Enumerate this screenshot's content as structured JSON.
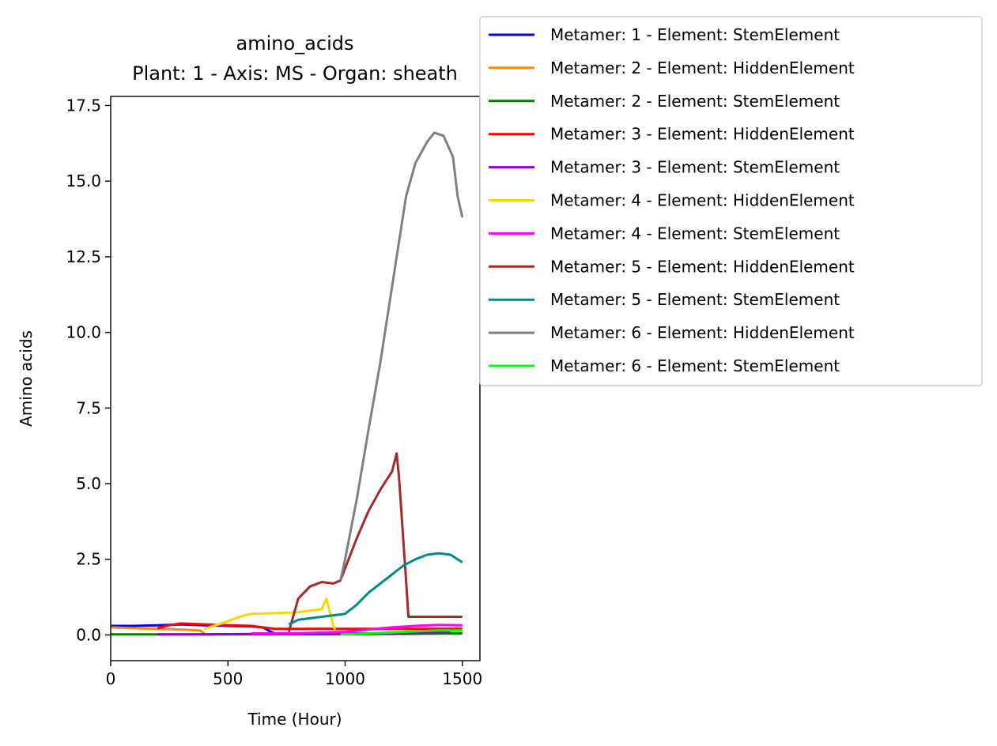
{
  "chart_data": {
    "type": "line",
    "title": "amino_acids",
    "subtitle": "Plant: 1 - Axis: MS - Organ: sheath",
    "xlabel": "Time (Hour)",
    "ylabel": "Amino acids",
    "xlim": [
      0,
      1575
    ],
    "ylim": [
      -0.85,
      17.8
    ],
    "xticks": [
      0,
      500,
      1000,
      1500
    ],
    "xtick_labels": [
      "0",
      "500",
      "1000",
      "1500"
    ],
    "yticks": [
      0,
      2.5,
      5,
      7.5,
      10,
      12.5,
      15,
      17.5
    ],
    "ytick_labels": [
      "0.0",
      "2.5",
      "5.0",
      "7.5",
      "10.0",
      "12.5",
      "15.0",
      "17.5"
    ],
    "grid": false,
    "legend_position": "outside-top-right",
    "series": [
      {
        "name": "Metamer: 1 - Element: StemElement",
        "color": "#0000ff",
        "x": [
          0,
          100,
          200,
          300,
          400,
          500,
          600,
          650,
          680,
          700
        ],
        "y": [
          0.3,
          0.3,
          0.32,
          0.35,
          0.32,
          0.3,
          0.28,
          0.25,
          0.12,
          0.05
        ]
      },
      {
        "name": "Metamer: 2 - Element: HiddenElement",
        "color": "#ff8c00",
        "x": [
          0,
          100,
          200,
          300,
          380,
          400
        ],
        "y": [
          0.25,
          0.22,
          0.2,
          0.18,
          0.15,
          0.05
        ]
      },
      {
        "name": "Metamer: 2 - Element: StemElement",
        "color": "#008000",
        "x": [
          0,
          300,
          600,
          900,
          1200,
          1500
        ],
        "y": [
          0.02,
          0.02,
          0.02,
          0.02,
          0.03,
          0.05
        ]
      },
      {
        "name": "Metamer: 3 - Element: HiddenElement",
        "color": "#ff0000",
        "x": [
          200,
          250,
          300,
          400,
          500,
          600,
          650,
          700,
          1000,
          1500
        ],
        "y": [
          0.22,
          0.32,
          0.38,
          0.35,
          0.32,
          0.3,
          0.25,
          0.2,
          0.2,
          0.2
        ]
      },
      {
        "name": "Metamer: 3 - Element: StemElement",
        "color": "#9400d3",
        "x": [
          200,
          400,
          600,
          800,
          1000,
          1200,
          1450
        ],
        "y": [
          0.02,
          0.02,
          0.03,
          0.04,
          0.05,
          0.06,
          0.08
        ]
      },
      {
        "name": "Metamer: 4 - Element: HiddenElement",
        "color": "#ffd700",
        "x": [
          400,
          500,
          550,
          600,
          700,
          800,
          850,
          900,
          920,
          950,
          960
        ],
        "y": [
          0.2,
          0.45,
          0.6,
          0.7,
          0.72,
          0.75,
          0.8,
          0.85,
          1.2,
          0.3,
          0.1
        ]
      },
      {
        "name": "Metamer: 4 - Element: StemElement",
        "color": "#ff00ff",
        "x": [
          600,
          800,
          1000,
          1100,
          1200,
          1300,
          1400,
          1500
        ],
        "y": [
          0.05,
          0.06,
          0.1,
          0.18,
          0.25,
          0.3,
          0.33,
          0.32
        ]
      },
      {
        "name": "Metamer: 5 - Element: HiddenElement",
        "color": "#a52a2a",
        "x": [
          760,
          800,
          850,
          900,
          950,
          980,
          1000,
          1050,
          1100,
          1150,
          1200,
          1220,
          1230,
          1260,
          1270,
          1500
        ],
        "y": [
          0.1,
          1.2,
          1.6,
          1.75,
          1.7,
          1.8,
          2.2,
          3.2,
          4.1,
          4.8,
          5.4,
          6.0,
          5.2,
          1.8,
          0.6,
          0.6
        ]
      },
      {
        "name": "Metamer: 5 - Element: StemElement",
        "color": "#008b8b",
        "x": [
          760,
          800,
          900,
          1000,
          1050,
          1100,
          1150,
          1200,
          1250,
          1300,
          1350,
          1400,
          1450,
          1500
        ],
        "y": [
          0.35,
          0.5,
          0.6,
          0.7,
          1.0,
          1.4,
          1.7,
          2.0,
          2.3,
          2.5,
          2.65,
          2.7,
          2.65,
          2.4
        ]
      },
      {
        "name": "Metamer: 6 - Element: HiddenElement",
        "color": "#808080",
        "x": [
          980,
          1000,
          1050,
          1100,
          1150,
          1200,
          1230,
          1260,
          1300,
          1350,
          1380,
          1420,
          1460,
          1480,
          1500
        ],
        "y": [
          1.8,
          2.5,
          4.5,
          6.8,
          9.0,
          11.5,
          13.0,
          14.5,
          15.6,
          16.3,
          16.6,
          16.5,
          15.8,
          14.5,
          13.8
        ]
      },
      {
        "name": "Metamer: 6 - Element: StemElement",
        "color": "#00ff00",
        "x": [
          980,
          1100,
          1200,
          1300,
          1400,
          1500
        ],
        "y": [
          0.02,
          0.05,
          0.08,
          0.12,
          0.15,
          0.15
        ]
      }
    ]
  }
}
